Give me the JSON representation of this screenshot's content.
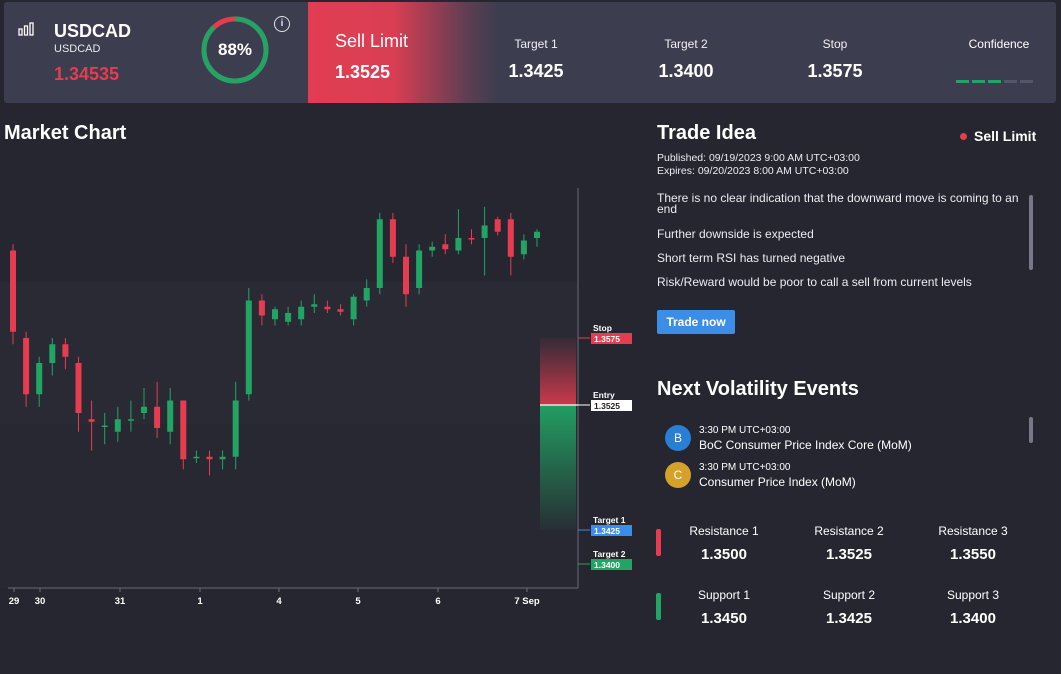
{
  "header": {
    "symbol": "USDCAD",
    "symbol_sub": "USDCAD",
    "price": "1.34535",
    "confidence_pct": "88%",
    "confidence_value": 0.88,
    "info": "i",
    "order_type": "Sell Limit",
    "entry": "1.3525",
    "target1_label": "Target 1",
    "target1": "1.3425",
    "target2_label": "Target 2",
    "target2": "1.3400",
    "stop_label": "Stop",
    "stop": "1.3575",
    "confidence_label": "Confidence",
    "confidence_bars": 3,
    "confidence_bars_total": 5
  },
  "market_chart": {
    "title": "Market Chart",
    "price_lines": {
      "stop_label": "Stop",
      "stop": "1.3575",
      "entry_label": "Entry",
      "entry": "1.3525",
      "target1_label": "Target 1",
      "target1": "1.3425",
      "target2_label": "Target 2",
      "target2": "1.3400"
    }
  },
  "chart_data": {
    "type": "candlestick",
    "x_tick_labels": [
      "29",
      "30",
      "31",
      "1",
      "4",
      "5",
      "6",
      "7 Sep"
    ],
    "ylim": [
      1.3365,
      1.3685
    ],
    "candles": [
      {
        "o": 1.3635,
        "h": 1.364,
        "l": 1.356,
        "c": 1.357
      },
      {
        "o": 1.3565,
        "h": 1.357,
        "l": 1.351,
        "c": 1.352
      },
      {
        "o": 1.352,
        "h": 1.355,
        "l": 1.351,
        "c": 1.3545
      },
      {
        "o": 1.3545,
        "h": 1.3565,
        "l": 1.3535,
        "c": 1.356
      },
      {
        "o": 1.356,
        "h": 1.3565,
        "l": 1.354,
        "c": 1.355
      },
      {
        "o": 1.3545,
        "h": 1.355,
        "l": 1.349,
        "c": 1.3505
      },
      {
        "o": 1.35,
        "h": 1.3515,
        "l": 1.3475,
        "c": 1.3498
      },
      {
        "o": 1.3495,
        "h": 1.3505,
        "l": 1.348,
        "c": 1.3495
      },
      {
        "o": 1.349,
        "h": 1.351,
        "l": 1.3482,
        "c": 1.35
      },
      {
        "o": 1.35,
        "h": 1.3515,
        "l": 1.349,
        "c": 1.35
      },
      {
        "o": 1.3505,
        "h": 1.3525,
        "l": 1.35,
        "c": 1.351
      },
      {
        "o": 1.351,
        "h": 1.353,
        "l": 1.3485,
        "c": 1.3493
      },
      {
        "o": 1.349,
        "h": 1.3525,
        "l": 1.348,
        "c": 1.3515
      },
      {
        "o": 1.3515,
        "h": 1.3515,
        "l": 1.346,
        "c": 1.3468
      },
      {
        "o": 1.347,
        "h": 1.3475,
        "l": 1.3465,
        "c": 1.347
      },
      {
        "o": 1.347,
        "h": 1.3475,
        "l": 1.3455,
        "c": 1.3468
      },
      {
        "o": 1.3468,
        "h": 1.3475,
        "l": 1.346,
        "c": 1.347
      },
      {
        "o": 1.347,
        "h": 1.353,
        "l": 1.346,
        "c": 1.3515
      },
      {
        "o": 1.352,
        "h": 1.3605,
        "l": 1.3515,
        "c": 1.3595
      },
      {
        "o": 1.3595,
        "h": 1.36,
        "l": 1.3575,
        "c": 1.3583
      },
      {
        "o": 1.358,
        "h": 1.359,
        "l": 1.3575,
        "c": 1.3588
      },
      {
        "o": 1.3578,
        "h": 1.359,
        "l": 1.3575,
        "c": 1.3585
      },
      {
        "o": 1.358,
        "h": 1.3595,
        "l": 1.3575,
        "c": 1.359
      },
      {
        "o": 1.359,
        "h": 1.36,
        "l": 1.3585,
        "c": 1.3592
      },
      {
        "o": 1.359,
        "h": 1.3595,
        "l": 1.3585,
        "c": 1.3588
      },
      {
        "o": 1.3588,
        "h": 1.3592,
        "l": 1.3583,
        "c": 1.3586
      },
      {
        "o": 1.358,
        "h": 1.36,
        "l": 1.3575,
        "c": 1.3598
      },
      {
        "o": 1.3595,
        "h": 1.3612,
        "l": 1.359,
        "c": 1.3605
      },
      {
        "o": 1.3605,
        "h": 1.3665,
        "l": 1.36,
        "c": 1.366
      },
      {
        "o": 1.366,
        "h": 1.3665,
        "l": 1.3625,
        "c": 1.363
      },
      {
        "o": 1.363,
        "h": 1.364,
        "l": 1.359,
        "c": 1.36
      },
      {
        "o": 1.3605,
        "h": 1.364,
        "l": 1.36,
        "c": 1.3635
      },
      {
        "o": 1.3635,
        "h": 1.3642,
        "l": 1.363,
        "c": 1.3638
      },
      {
        "o": 1.364,
        "h": 1.3648,
        "l": 1.3632,
        "c": 1.3636
      },
      {
        "o": 1.3635,
        "h": 1.3668,
        "l": 1.3632,
        "c": 1.3645
      },
      {
        "o": 1.3645,
        "h": 1.3652,
        "l": 1.364,
        "c": 1.3644
      },
      {
        "o": 1.3645,
        "h": 1.367,
        "l": 1.3615,
        "c": 1.3655
      },
      {
        "o": 1.366,
        "h": 1.3662,
        "l": 1.3647,
        "c": 1.365
      },
      {
        "o": 1.366,
        "h": 1.3665,
        "l": 1.3615,
        "c": 1.363
      },
      {
        "o": 1.3632,
        "h": 1.3648,
        "l": 1.3628,
        "c": 1.3643
      },
      {
        "o": 1.3645,
        "h": 1.3652,
        "l": 1.3638,
        "c": 1.365
      }
    ]
  },
  "trade_idea": {
    "title": "Trade Idea",
    "order_type": "Sell Limit",
    "published": "Published:  09/19/2023 9:00 AM UTC+03:00",
    "expires": "Expires:  09/20/2023 8:00 AM UTC+03:00",
    "points": [
      "There is no clear indication that the downward move is coming to an end",
      "Further downside is expected",
      "Short term RSI has turned negative",
      "Risk/Reward would be poor to call a sell from current levels"
    ],
    "button": "Trade now"
  },
  "volatility": {
    "title": "Next Volatility Events",
    "events": [
      {
        "badge": "B",
        "time": "3:30 PM UTC+03:00",
        "name": "BoC Consumer Price Index Core (MoM)",
        "color": "#2a7fd4"
      },
      {
        "badge": "C",
        "time": "3:30 PM UTC+03:00",
        "name": "Consumer Price Index (MoM)",
        "color": "#d4a22a"
      }
    ]
  },
  "levels": {
    "resistance": [
      {
        "label": "Resistance 1",
        "value": "1.3500"
      },
      {
        "label": "Resistance 2",
        "value": "1.3525"
      },
      {
        "label": "Resistance 3",
        "value": "1.3550"
      }
    ],
    "support": [
      {
        "label": "Support 1",
        "value": "1.3450"
      },
      {
        "label": "Support 2",
        "value": "1.3425"
      },
      {
        "label": "Support 3",
        "value": "1.3400"
      }
    ]
  },
  "colors": {
    "up": "#21a464",
    "down": "#e63c50",
    "accent": "#3b8ee8"
  }
}
